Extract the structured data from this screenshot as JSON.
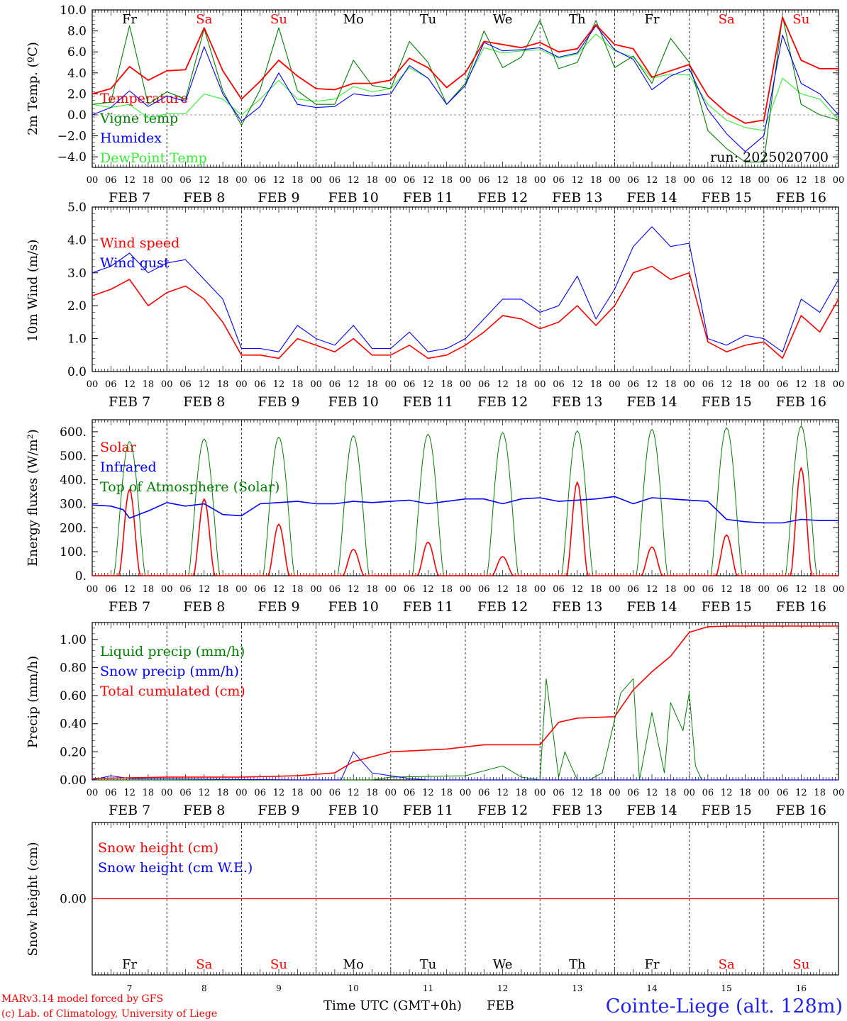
{
  "colors": {
    "red": "#ff0000",
    "dark_green": "#008000",
    "light_green": "#33ee33",
    "blue": "#0000ff",
    "axis": "#000000",
    "zero_line": "#777777"
  },
  "x_axis": {
    "hour_ticks": [
      "00",
      "06",
      "12",
      "18"
    ],
    "final_hour_label": "00",
    "date_labels": [
      "FEB 7",
      "FEB 8",
      "FEB 9",
      "FEB 10",
      "FEB 11",
      "FEB 12",
      "FEB 13",
      "FEB 14",
      "FEB 15",
      "FEB 16"
    ],
    "day_abbrevs": [
      "Fr",
      "Sa",
      "Su",
      "Mo",
      "Tu",
      "We",
      "Th",
      "Fr",
      "Sa",
      "Su"
    ],
    "weekend_days": [
      1,
      2,
      8,
      9
    ],
    "day_numbers": [
      "7",
      "8",
      "9",
      "10",
      "11",
      "12",
      "13",
      "14",
      "15",
      "16"
    ],
    "title": "Time UTC (GMT+0h)",
    "month": "FEB"
  },
  "footer": {
    "credit_line1": "MARv3.14 model forced by GFS",
    "credit_line2": "(c) Lab. of Climatology, University of Liege",
    "station": "Cointe-Liege (alt. 128m)"
  },
  "chart_data": [
    {
      "type": "line",
      "ylabel": "2m Temp. (ºC)",
      "ylim": [
        -5,
        10
      ],
      "yticks": [
        "10.0",
        "8.0",
        "6.0",
        "4.0",
        "2.0",
        "0.0",
        "−2.0",
        "−4.0"
      ],
      "ytick_values": [
        10,
        8,
        6,
        4,
        2,
        0,
        -2,
        -4
      ],
      "zero_line": true,
      "annotation": "run: 2025020700",
      "legend": [
        {
          "name": "Temperature",
          "color": "#ff0000"
        },
        {
          "name": "Vigne temp",
          "color": "#008000"
        },
        {
          "name": "Humidex",
          "color": "#0000ff"
        },
        {
          "name": "DewPoint Temp",
          "color": "#33ee33"
        }
      ],
      "x_hours": [
        0,
        6,
        12,
        18,
        24,
        30,
        36,
        42,
        48,
        54,
        60,
        66,
        72,
        78,
        84,
        90,
        96,
        102,
        108,
        114,
        120,
        126,
        132,
        138,
        144,
        150,
        156,
        162,
        168,
        174,
        180,
        186,
        192,
        198,
        204,
        210,
        216,
        222,
        228,
        234,
        240
      ],
      "series": [
        {
          "name": "Temperature",
          "values": [
            2.0,
            2.5,
            4.6,
            3.3,
            4.2,
            4.3,
            8.3,
            4.2,
            1.5,
            3.2,
            5.2,
            3.7,
            2.5,
            2.4,
            3.0,
            3.0,
            3.3,
            5.4,
            4.5,
            2.6,
            4.0,
            7.0,
            6.7,
            6.4,
            6.9,
            6.0,
            6.3,
            8.6,
            6.7,
            6.3,
            3.6,
            4.2,
            4.8,
            1.8,
            0.2,
            -0.8,
            -0.5,
            9.3,
            5.2,
            4.4,
            4.4
          ]
        },
        {
          "name": "Vigne temp",
          "values": [
            1.0,
            1.2,
            8.5,
            1.0,
            2.2,
            1.5,
            8.2,
            2.3,
            -1.0,
            2.4,
            8.3,
            2.3,
            1.0,
            1.0,
            5.2,
            2.8,
            2.5,
            7.0,
            5.0,
            1.0,
            3.0,
            8.0,
            4.5,
            5.5,
            9.0,
            4.4,
            5.0,
            9.0,
            4.5,
            5.6,
            3.0,
            7.3,
            5.0,
            -1.5,
            -3.2,
            -4.5,
            -4.5,
            9.4,
            1.0,
            0.0,
            -0.5
          ]
        },
        {
          "name": "Humidex",
          "values": [
            0.0,
            0.7,
            2.3,
            0.8,
            1.8,
            1.3,
            6.5,
            2.0,
            -0.6,
            0.8,
            4.0,
            1.0,
            0.7,
            0.8,
            2.0,
            1.8,
            2.0,
            4.7,
            3.5,
            1.0,
            2.8,
            6.9,
            6.1,
            6.2,
            6.4,
            5.5,
            5.9,
            8.5,
            6.2,
            5.3,
            2.4,
            3.7,
            4.4,
            0.5,
            -1.8,
            -3.5,
            -2.0,
            7.6,
            3.0,
            2.0,
            0.0
          ]
        },
        {
          "name": "DewPoint Temp",
          "values": [
            1.0,
            0.7,
            1.0,
            -0.3,
            0.1,
            0.1,
            2.0,
            1.5,
            0.0,
            1.5,
            3.3,
            1.5,
            1.3,
            1.5,
            2.7,
            2.2,
            2.5,
            4.5,
            3.5,
            1.0,
            3.0,
            6.4,
            5.9,
            6.1,
            6.2,
            5.4,
            5.8,
            7.7,
            6.1,
            5.5,
            3.5,
            3.9,
            3.8,
            1.0,
            -0.5,
            -1.2,
            -1.5,
            3.5,
            2.0,
            1.5,
            -0.5
          ]
        }
      ]
    },
    {
      "type": "line",
      "ylabel": "10m Wind (m/s)",
      "ylim": [
        0,
        5
      ],
      "yticks": [
        "5.0",
        "4.0",
        "3.0",
        "2.0",
        "1.0",
        "0.0"
      ],
      "ytick_values": [
        5,
        4,
        3,
        2,
        1,
        0
      ],
      "legend": [
        {
          "name": "Wind speed",
          "color": "#ff0000"
        },
        {
          "name": "Wind gust",
          "color": "#0000ff"
        }
      ],
      "x_hours": [
        0,
        6,
        12,
        18,
        24,
        30,
        36,
        42,
        48,
        54,
        60,
        66,
        72,
        78,
        84,
        90,
        96,
        102,
        108,
        114,
        120,
        126,
        132,
        138,
        144,
        150,
        156,
        162,
        168,
        174,
        180,
        186,
        192,
        198,
        204,
        210,
        216,
        222,
        228,
        234,
        240
      ],
      "series": [
        {
          "name": "Wind speed",
          "values": [
            2.3,
            2.5,
            2.8,
            2.0,
            2.4,
            2.6,
            2.2,
            1.5,
            0.5,
            0.5,
            0.4,
            1.0,
            0.8,
            0.6,
            1.0,
            0.5,
            0.5,
            0.8,
            0.4,
            0.5,
            0.8,
            1.2,
            1.7,
            1.6,
            1.3,
            1.5,
            2.0,
            1.4,
            2.0,
            3.0,
            3.2,
            2.8,
            3.0,
            0.9,
            0.6,
            0.8,
            0.9,
            0.4,
            1.7,
            1.2,
            2.2
          ]
        },
        {
          "name": "Wind gust",
          "values": [
            3.0,
            3.2,
            3.6,
            3.0,
            3.3,
            3.4,
            2.8,
            2.2,
            0.7,
            0.7,
            0.6,
            1.4,
            1.0,
            0.8,
            1.4,
            0.7,
            0.7,
            1.2,
            0.6,
            0.7,
            1.0,
            1.6,
            2.2,
            2.2,
            1.8,
            2.0,
            2.9,
            1.6,
            2.5,
            3.8,
            4.4,
            3.8,
            3.9,
            1.0,
            0.8,
            1.1,
            1.0,
            0.6,
            2.2,
            1.8,
            2.8
          ]
        }
      ]
    },
    {
      "type": "line",
      "ylabel": "Energy fluxes (W/m²)",
      "ylim": [
        0,
        650
      ],
      "yticks": [
        "600.",
        "500.",
        "400.",
        "300.",
        "200.",
        "100.",
        "0."
      ],
      "ytick_values": [
        600,
        500,
        400,
        300,
        200,
        100,
        0
      ],
      "legend": [
        {
          "name": "Solar",
          "color": "#ff0000"
        },
        {
          "name": "Infrared",
          "color": "#0000ff"
        },
        {
          "name": "Top of Atmosphere (Solar)",
          "color": "#008000"
        }
      ],
      "toa_peaks": [
        560,
        570,
        578,
        584,
        590,
        597,
        604,
        610,
        617,
        624
      ],
      "solar_peaks": [
        360,
        320,
        215,
        110,
        140,
        80,
        390,
        120,
        170,
        450
      ],
      "infrared_x": [
        0,
        6,
        10,
        12,
        18,
        24,
        30,
        36,
        42,
        48,
        54,
        60,
        66,
        72,
        78,
        84,
        90,
        96,
        102,
        108,
        114,
        120,
        126,
        132,
        138,
        144,
        150,
        156,
        162,
        168,
        174,
        180,
        186,
        192,
        198,
        204,
        210,
        216,
        222,
        228,
        234,
        240
      ],
      "infrared_values": [
        295,
        290,
        275,
        240,
        270,
        305,
        290,
        300,
        255,
        250,
        300,
        305,
        310,
        300,
        300,
        310,
        305,
        310,
        315,
        300,
        310,
        320,
        320,
        300,
        320,
        325,
        310,
        315,
        320,
        330,
        300,
        325,
        320,
        315,
        310,
        235,
        225,
        220,
        220,
        235,
        230,
        230
      ]
    },
    {
      "type": "line",
      "ylabel": "Precip (mm/h)",
      "ylim": [
        0,
        1.12
      ],
      "yticks": [
        "1.00",
        "0.80",
        "0.60",
        "0.40",
        "0.20",
        "0.00"
      ],
      "ytick_values": [
        1.0,
        0.8,
        0.6,
        0.4,
        0.2,
        0
      ],
      "legend": [
        {
          "name": "Liquid precip (mm/h)",
          "color": "#008000"
        },
        {
          "name": "Snow precip (mm/h)",
          "color": "#0000ff"
        },
        {
          "name": "Total cumulated (cm)",
          "color": "#ff0000"
        }
      ],
      "total_x": [
        0,
        24,
        48,
        66,
        78,
        84,
        96,
        114,
        126,
        144,
        150,
        156,
        168,
        174,
        180,
        186,
        192,
        198,
        204,
        216,
        240
      ],
      "total_values": [
        0.01,
        0.02,
        0.02,
        0.03,
        0.05,
        0.13,
        0.2,
        0.22,
        0.25,
        0.25,
        0.41,
        0.44,
        0.45,
        0.64,
        0.77,
        0.88,
        1.05,
        1.09,
        1.095,
        1.095,
        1.095
      ],
      "liquid_x": [
        0,
        90,
        96,
        120,
        132,
        138,
        144,
        146,
        150,
        152,
        156,
        160,
        164,
        170,
        174,
        176,
        180,
        184,
        186,
        190,
        192,
        194,
        196,
        200,
        240
      ],
      "liquid_values": [
        0,
        0,
        0.02,
        0.03,
        0.1,
        0.02,
        0,
        0.72,
        0.02,
        0.2,
        0,
        0,
        0.05,
        0.62,
        0.72,
        0,
        0.48,
        0.05,
        0.55,
        0.35,
        0.62,
        0.1,
        0,
        0,
        0
      ],
      "snow_x": [
        0,
        6,
        12,
        66,
        80,
        84,
        90,
        96,
        102,
        108,
        240
      ],
      "snow_values": [
        0,
        0.03,
        0.01,
        0,
        0,
        0.2,
        0.05,
        0.03,
        0.01,
        0,
        0
      ]
    },
    {
      "type": "line",
      "ylabel": "Snow height (cm)",
      "yticks": [
        "0.00"
      ],
      "legend": [
        {
          "name": "Snow height (cm)",
          "color": "#ff0000"
        },
        {
          "name": "Snow height (cm W.E.)",
          "color": "#0000ff"
        }
      ],
      "x_hours": [
        0,
        240
      ],
      "series": [
        {
          "name": "Snow height (cm)",
          "values": [
            0,
            0
          ]
        }
      ]
    }
  ]
}
